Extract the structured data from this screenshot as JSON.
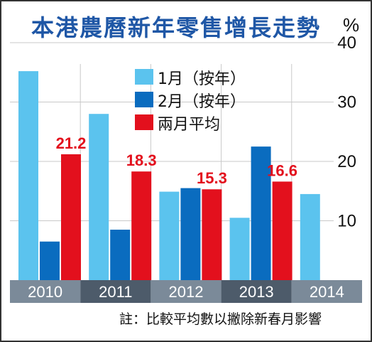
{
  "chart_data": {
    "type": "bar",
    "title": "本港農曆新年零售增長走勢",
    "unit_label": "%",
    "categories": [
      "2010",
      "2011",
      "2012",
      "2013",
      "2014"
    ],
    "series": [
      {
        "name": "1月（按年）",
        "values": [
          35.2,
          28.0,
          14.9,
          10.5,
          14.5
        ],
        "color": "#5bc3ee"
      },
      {
        "name": "2月（按年）",
        "values": [
          6.5,
          8.5,
          15.5,
          22.5,
          null
        ],
        "color": "#0a6cbf"
      },
      {
        "name": "兩月平均",
        "values": [
          21.2,
          18.3,
          15.3,
          16.6,
          null
        ],
        "color": "#e3101d"
      }
    ],
    "data_labels": [
      "21.2",
      "18.3",
      "15.3",
      "16.6"
    ],
    "yticks": [
      "10",
      "20",
      "30",
      "40"
    ],
    "ylim": [
      0,
      40
    ],
    "grid": true,
    "note": "註：比較平均數以撇除新春月影響"
  }
}
